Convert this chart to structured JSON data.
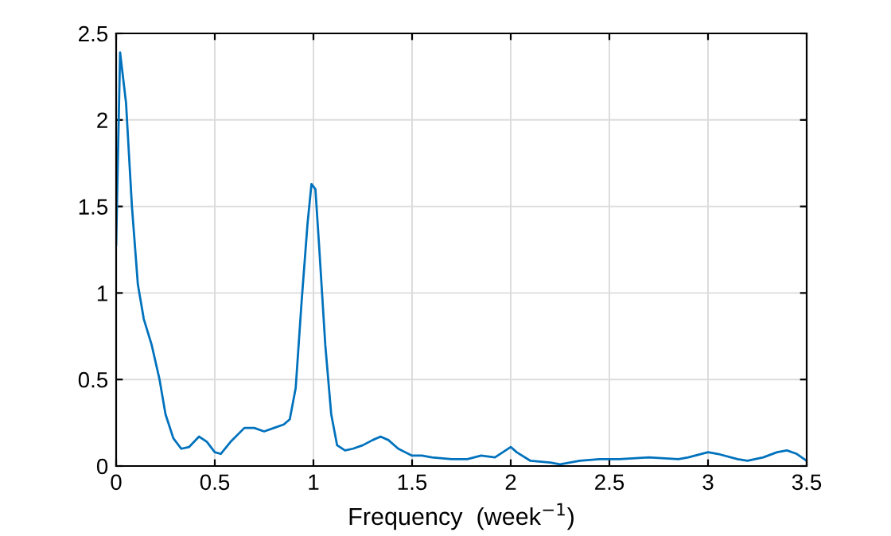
{
  "chart_data": {
    "type": "line",
    "xlabel": "Frequency  (week$^{−1}$)",
    "x": [
      0,
      0.02,
      0.05,
      0.08,
      0.11,
      0.14,
      0.18,
      0.22,
      0.25,
      0.29,
      0.33,
      0.37,
      0.42,
      0.46,
      0.5,
      0.53,
      0.58,
      0.65,
      0.7,
      0.75,
      0.8,
      0.85,
      0.88,
      0.91,
      0.94,
      0.97,
      0.99,
      1.01,
      1.03,
      1.06,
      1.09,
      1.12,
      1.16,
      1.2,
      1.25,
      1.3,
      1.34,
      1.38,
      1.43,
      1.5,
      1.55,
      1.6,
      1.7,
      1.78,
      1.85,
      1.92,
      1.96,
      2.0,
      2.03,
      2.1,
      2.2,
      2.25,
      2.35,
      2.45,
      2.55,
      2.7,
      2.85,
      2.9,
      3.0,
      3.05,
      3.15,
      3.2,
      3.28,
      3.35,
      3.4,
      3.45,
      3.5
    ],
    "series": [
      {
        "color": "#0072bd",
        "values": [
          1.28,
          2.39,
          2.1,
          1.5,
          1.05,
          0.85,
          0.7,
          0.5,
          0.3,
          0.16,
          0.1,
          0.11,
          0.17,
          0.14,
          0.08,
          0.07,
          0.14,
          0.22,
          0.22,
          0.2,
          0.22,
          0.24,
          0.27,
          0.45,
          0.95,
          1.4,
          1.63,
          1.6,
          1.25,
          0.7,
          0.3,
          0.12,
          0.09,
          0.1,
          0.12,
          0.15,
          0.17,
          0.15,
          0.1,
          0.06,
          0.06,
          0.05,
          0.04,
          0.04,
          0.06,
          0.05,
          0.08,
          0.11,
          0.08,
          0.03,
          0.02,
          0.01,
          0.03,
          0.04,
          0.04,
          0.05,
          0.04,
          0.05,
          0.08,
          0.07,
          0.04,
          0.03,
          0.05,
          0.08,
          0.09,
          0.07,
          0.03
        ]
      }
    ],
    "xlim": [
      0,
      3.5
    ],
    "ylim": [
      0,
      2.5
    ],
    "xticks": [
      0,
      0.5,
      1,
      1.5,
      2,
      2.5,
      3,
      3.5
    ],
    "yticks": [
      0,
      0.5,
      1,
      1.5,
      2,
      2.5
    ],
    "grid": true
  }
}
